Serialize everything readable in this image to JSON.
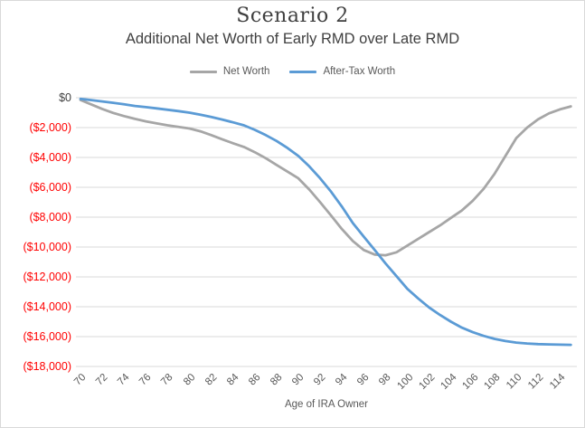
{
  "title": "Scenario 2",
  "subtitle": "Additional Net Worth of Early RMD over Late RMD",
  "x_axis_title": "Age of IRA Owner",
  "colors": {
    "net_worth_line": "#a6a6a6",
    "after_tax_line": "#5b9bd5",
    "y_tick_zero": "#404040",
    "y_tick_negative": "#ff0000",
    "gridline": "#d9d9d9",
    "tick_text": "#595959",
    "title_text": "#3f3f3f"
  },
  "chart_data": {
    "type": "line",
    "title": "Scenario 2",
    "subtitle": "Additional Net Worth of Early RMD over Late RMD",
    "xlabel": "Age of IRA Owner",
    "legend_position": "top",
    "grid": true,
    "x_range": [
      70,
      115
    ],
    "ylim": [
      -18000,
      0
    ],
    "ytick_step": 2000,
    "y_tick_labels": [
      "$0",
      "($2,000)",
      "($4,000)",
      "($6,000)",
      "($8,000)",
      "($10,000)",
      "($12,000)",
      "($14,000)",
      "($16,000)",
      "($18,000)"
    ],
    "x_tick_labels": [
      "70",
      "72",
      "74",
      "76",
      "78",
      "80",
      "82",
      "84",
      "86",
      "88",
      "90",
      "92",
      "94",
      "96",
      "98",
      "100",
      "102",
      "104",
      "106",
      "108",
      "110",
      "112",
      "114"
    ],
    "x": [
      70,
      71,
      72,
      73,
      74,
      75,
      76,
      77,
      78,
      79,
      80,
      81,
      82,
      83,
      84,
      85,
      86,
      87,
      88,
      89,
      90,
      91,
      92,
      93,
      94,
      95,
      96,
      97,
      98,
      99,
      100,
      101,
      102,
      103,
      104,
      105,
      106,
      107,
      108,
      109,
      110,
      111,
      112,
      113,
      114,
      115
    ],
    "series": [
      {
        "name": "Net Worth",
        "color": "#a6a6a6",
        "values": [
          -150,
          -450,
          -750,
          -1020,
          -1230,
          -1420,
          -1580,
          -1720,
          -1850,
          -1950,
          -2060,
          -2250,
          -2500,
          -2780,
          -3050,
          -3300,
          -3650,
          -4050,
          -4500,
          -4950,
          -5400,
          -6150,
          -7000,
          -7900,
          -8800,
          -9600,
          -10200,
          -10500,
          -10550,
          -10350,
          -9900,
          -9450,
          -9000,
          -8550,
          -8050,
          -7550,
          -6900,
          -6100,
          -5100,
          -3900,
          -2700,
          -2000,
          -1450,
          -1050,
          -780,
          -580
        ]
      },
      {
        "name": "After-Tax Worth",
        "color": "#5b9bd5",
        "values": [
          -80,
          -160,
          -250,
          -340,
          -440,
          -550,
          -630,
          -715,
          -805,
          -900,
          -1000,
          -1140,
          -1290,
          -1460,
          -1650,
          -1850,
          -2150,
          -2500,
          -2900,
          -3370,
          -3900,
          -4600,
          -5400,
          -6300,
          -7300,
          -8400,
          -9300,
          -10200,
          -11100,
          -11950,
          -12800,
          -13450,
          -14050,
          -14550,
          -15000,
          -15400,
          -15700,
          -15950,
          -16150,
          -16300,
          -16400,
          -16460,
          -16500,
          -16520,
          -16540,
          -16550
        ]
      }
    ]
  }
}
